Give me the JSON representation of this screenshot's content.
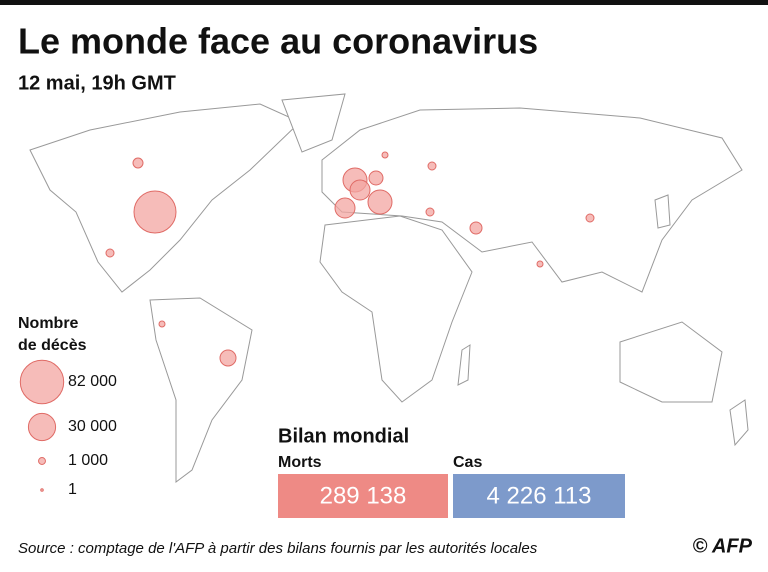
{
  "header": {
    "title": "Le monde face au coronavirus",
    "subtitle": "12 mai, 19h GMT"
  },
  "legend": {
    "title_lines": [
      "Nombre",
      "de décès"
    ],
    "items": [
      {
        "value": 82000,
        "label": "82 000"
      },
      {
        "value": 30000,
        "label": "30 000"
      },
      {
        "value": 1000,
        "label": "1 000"
      },
      {
        "value": 1,
        "label": "1"
      }
    ]
  },
  "summary": {
    "title": "Bilan mondial",
    "items": [
      {
        "label": "Morts",
        "value": "289 138",
        "color": "#ee8a85"
      },
      {
        "label": "Cas",
        "value": "4 226 113",
        "color": "#7d9acb"
      }
    ]
  },
  "footer": {
    "source": "Source : comptage de l'AFP à partir des bilans fournis par les autorités locales",
    "credit": "© AFP"
  }
}
